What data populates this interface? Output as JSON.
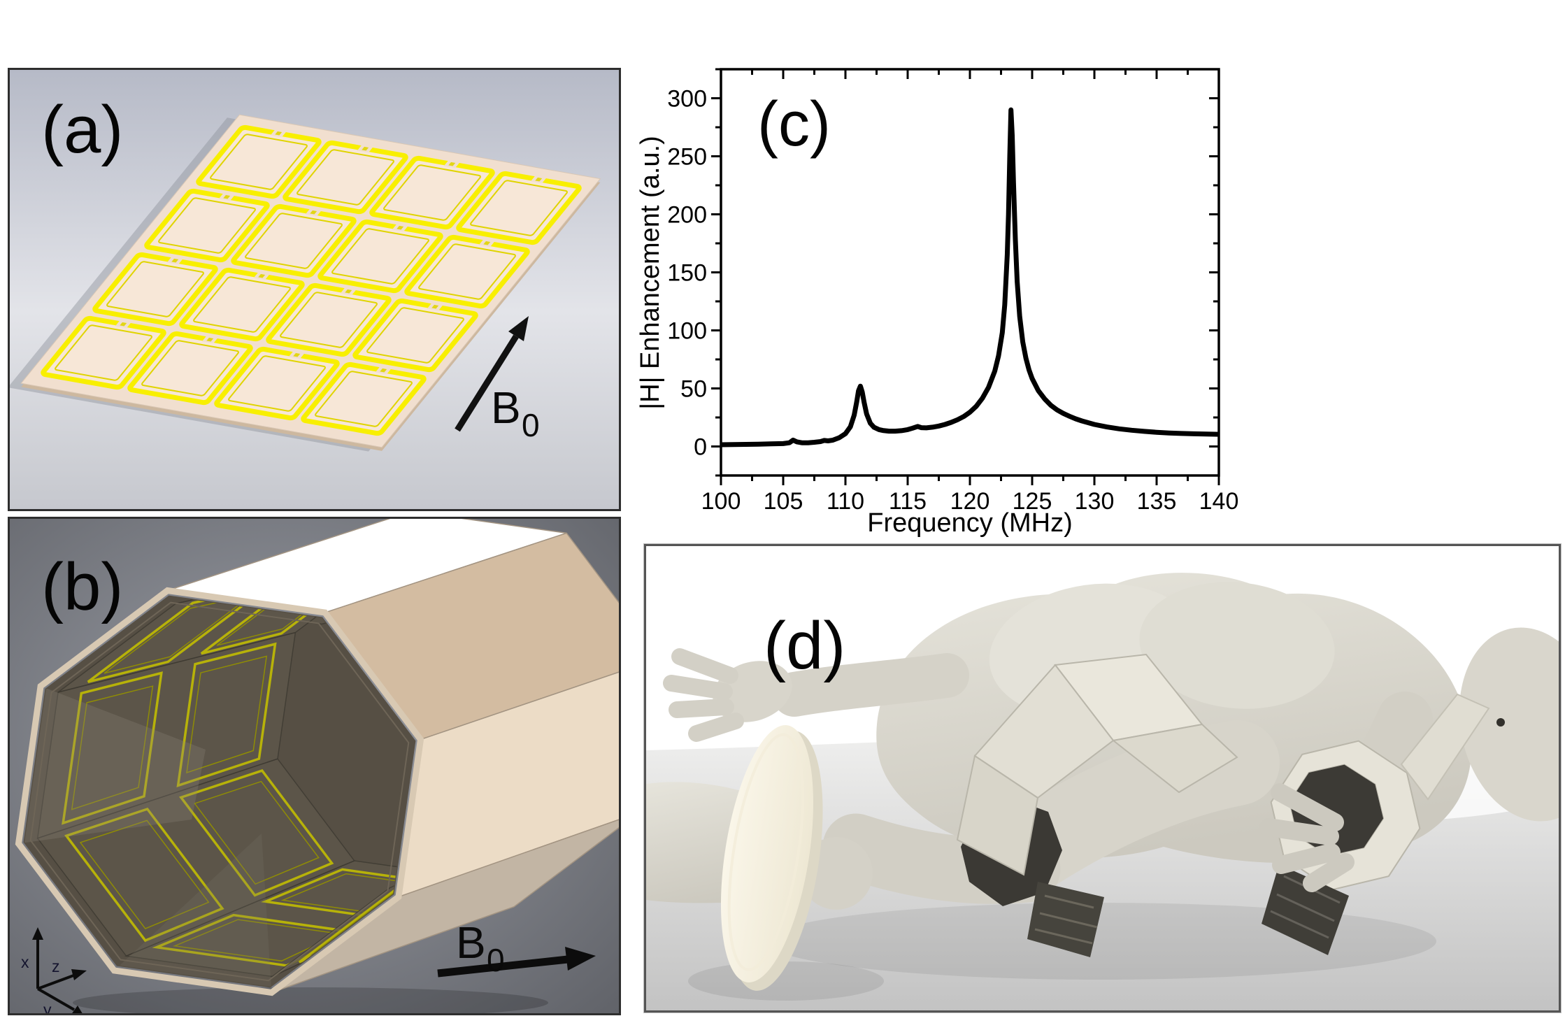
{
  "figure": {
    "panels": {
      "a": {
        "label": "(a)",
        "b0_label": "B",
        "b0_sub": "0",
        "description": "flat 4x4 coil array render",
        "grid": {
          "rows": 4,
          "cols": 4
        }
      },
      "b": {
        "label": "(b)",
        "b0_label": "B",
        "b0_sub": "0",
        "axes": {
          "x": "x",
          "y": "y",
          "z": "z"
        },
        "description": "octagonal coil tube render"
      },
      "c": {
        "label": "(c)",
        "description": "field enhancement spectrum"
      },
      "d": {
        "label": "(d)",
        "description": "body model with octagonal coil rings"
      }
    }
  },
  "colors": {
    "coil_yellow": "#f8ef00",
    "coil_yellow_dark": "#e0d400",
    "coil_olive": "#b7b209",
    "plate": "#f1dfcf",
    "plate_edge": "#cdb89f",
    "cell_fill": "#f7e7d7",
    "panel_a_bg_top": "#b6bac7",
    "panel_a_bg_mid": "#e3e4e9",
    "panel_a_bg_bot": "#c6c8ce",
    "panel_b_bg_in": "#9b9ea6",
    "panel_b_bg_out": "#5f6167",
    "white_face": "#ffffff",
    "tan_face": "#d3bca1",
    "cream_face": "#ecdcc6",
    "bottom_face": "#c2b5a4",
    "interior_dark": "#564f44",
    "wall_fill": "#5e574b",
    "body": "#dbd8cf",
    "body_shade": "#c9c6bc",
    "body_light": "#e9e7df",
    "sole": "#f7f3e4",
    "floor_light": "#efefee",
    "floor_dark": "#c3c3c3",
    "ring_cream": "#e6e3d8",
    "ring_dark": "#3c3a35",
    "curve": "#000000",
    "arrow_black": "#111111"
  },
  "chart_data": {
    "type": "line",
    "title": "",
    "panel_label": "(c)",
    "xlabel": "Frequency (MHz)",
    "ylabel": "|H| Enhancement (a.u.)",
    "xlim": [
      100,
      140
    ],
    "ylim": [
      -25,
      325
    ],
    "x_ticks": [
      100,
      105,
      110,
      115,
      120,
      125,
      130,
      135,
      140
    ],
    "y_ticks": [
      0,
      50,
      100,
      150,
      200,
      250,
      300
    ],
    "x_minor_step": 2.5,
    "y_minor_step": 25,
    "grid": false,
    "legend": null,
    "series": [
      {
        "name": "|H| enhancement",
        "color": "#000000",
        "points": [
          [
            100,
            1.5
          ],
          [
            101,
            1.6
          ],
          [
            102,
            1.8
          ],
          [
            103,
            2.0
          ],
          [
            104,
            2.2
          ],
          [
            105,
            2.5
          ],
          [
            105.5,
            3.2
          ],
          [
            105.8,
            5.5
          ],
          [
            106.1,
            4.0
          ],
          [
            106.5,
            3.2
          ],
          [
            107,
            3.2
          ],
          [
            107.5,
            3.6
          ],
          [
            108,
            4.2
          ],
          [
            108.3,
            5.2
          ],
          [
            108.6,
            4.8
          ],
          [
            109,
            5.5
          ],
          [
            109.5,
            7.5
          ],
          [
            110,
            11
          ],
          [
            110.4,
            17
          ],
          [
            110.7,
            27
          ],
          [
            110.9,
            38
          ],
          [
            111.05,
            48
          ],
          [
            111.2,
            52
          ],
          [
            111.35,
            47
          ],
          [
            111.5,
            38
          ],
          [
            111.7,
            28
          ],
          [
            112,
            20
          ],
          [
            112.3,
            16.5
          ],
          [
            112.7,
            14.5
          ],
          [
            113,
            13.8
          ],
          [
            113.5,
            13.2
          ],
          [
            114,
            13.2
          ],
          [
            114.5,
            13.6
          ],
          [
            115,
            14.5
          ],
          [
            115.4,
            15.8
          ],
          [
            115.8,
            17.2
          ],
          [
            116.1,
            16.2
          ],
          [
            116.5,
            16.0
          ],
          [
            117,
            16.6
          ],
          [
            117.5,
            17.6
          ],
          [
            118,
            19
          ],
          [
            118.5,
            20.8
          ],
          [
            119,
            23
          ],
          [
            119.5,
            25.8
          ],
          [
            120,
            29.5
          ],
          [
            120.5,
            34.5
          ],
          [
            121,
            41.5
          ],
          [
            121.5,
            51
          ],
          [
            122,
            65
          ],
          [
            122.3,
            78
          ],
          [
            122.6,
            98
          ],
          [
            122.8,
            122
          ],
          [
            123.0,
            165
          ],
          [
            123.1,
            200
          ],
          [
            123.2,
            250
          ],
          [
            123.3,
            290
          ],
          [
            123.4,
            268
          ],
          [
            123.5,
            228
          ],
          [
            123.65,
            178
          ],
          [
            123.8,
            142
          ],
          [
            124,
            112
          ],
          [
            124.25,
            90
          ],
          [
            124.5,
            76
          ],
          [
            124.75,
            66
          ],
          [
            125,
            58.5
          ],
          [
            125.5,
            48
          ],
          [
            126,
            41
          ],
          [
            126.5,
            35.5
          ],
          [
            127,
            31.5
          ],
          [
            127.5,
            28.5
          ],
          [
            128,
            26
          ],
          [
            128.5,
            23.8
          ],
          [
            129,
            22
          ],
          [
            129.5,
            20.5
          ],
          [
            130,
            19
          ],
          [
            131,
            16.8
          ],
          [
            132,
            15.2
          ],
          [
            133,
            14
          ],
          [
            134,
            13
          ],
          [
            135,
            12.2
          ],
          [
            136,
            11.6
          ],
          [
            137,
            11.2
          ],
          [
            138,
            10.9
          ],
          [
            139,
            10.7
          ],
          [
            140,
            10.5
          ]
        ]
      }
    ]
  }
}
